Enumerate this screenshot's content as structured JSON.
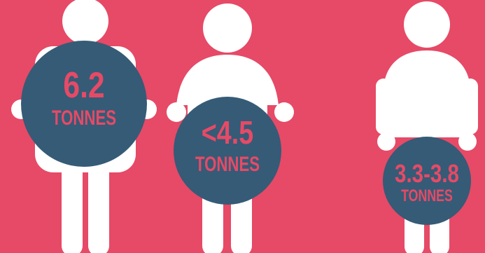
{
  "figures": [
    {
      "value": "6.2",
      "unit": "TONNES"
    },
    {
      "value": "<4.5",
      "unit": "TONNES"
    },
    {
      "value": "3.3-3.8",
      "unit": "TONNES"
    }
  ],
  "colors": {
    "background": "#e64a66",
    "figure": "#ffffff",
    "circle": "#355b77",
    "text": "#e64a66"
  }
}
